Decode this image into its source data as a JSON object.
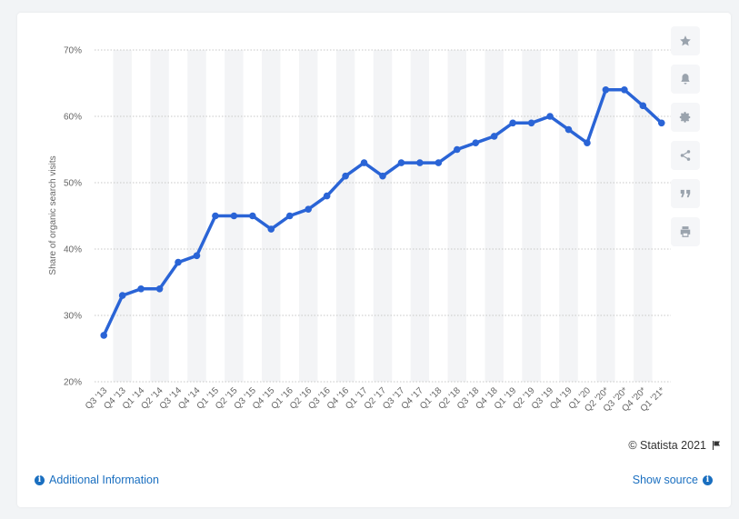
{
  "chart_data": {
    "type": "line",
    "ylabel": "Share of organic search visits",
    "ylim": [
      20,
      70
    ],
    "yticks": [
      20,
      30,
      40,
      50,
      60,
      70
    ],
    "ytick_labels": [
      "20%",
      "30%",
      "40%",
      "50%",
      "60%",
      "70%"
    ],
    "categories": [
      "Q3 '13",
      "Q4 '13",
      "Q1 '14",
      "Q2 '14",
      "Q3 '14",
      "Q4 '14",
      "Q1 '15",
      "Q2 '15",
      "Q3 '15",
      "Q4 '15",
      "Q1 '16",
      "Q2 '16",
      "Q3 '16",
      "Q4 '16",
      "Q1 '17",
      "Q2 '17",
      "Q3 '17",
      "Q4 '17",
      "Q1 '18",
      "Q2 '18",
      "Q3 '18",
      "Q4 '18",
      "Q1 '19",
      "Q2 '19",
      "Q3 '19",
      "Q4 '19",
      "Q1 '20",
      "Q2 '20*",
      "Q3 '20*",
      "Q4 '20*",
      "Q1 '21*"
    ],
    "series": [
      {
        "color": "#2a64d6",
        "values": [
          27,
          33,
          34,
          34,
          38,
          39,
          45,
          45,
          45,
          43,
          45,
          46,
          48,
          51,
          53,
          51,
          53,
          53,
          53,
          55,
          56,
          57,
          59,
          59,
          60,
          58,
          56,
          64,
          64,
          61.6,
          59
        ]
      }
    ],
    "grid": true,
    "legend": "none"
  },
  "colors": {
    "band": "#f3f4f6",
    "grid": "#c7c7c7",
    "link": "#1a6fc0"
  },
  "sidebar": {
    "buttons": [
      {
        "icon": "star-icon"
      },
      {
        "icon": "bell-icon"
      },
      {
        "icon": "gear-icon"
      },
      {
        "icon": "share-icon"
      },
      {
        "icon": "quote-icon"
      },
      {
        "icon": "print-icon"
      }
    ]
  },
  "footer": {
    "copyright": "© Statista 2021",
    "additional_info": "Additional Information",
    "show_source": "Show source"
  }
}
